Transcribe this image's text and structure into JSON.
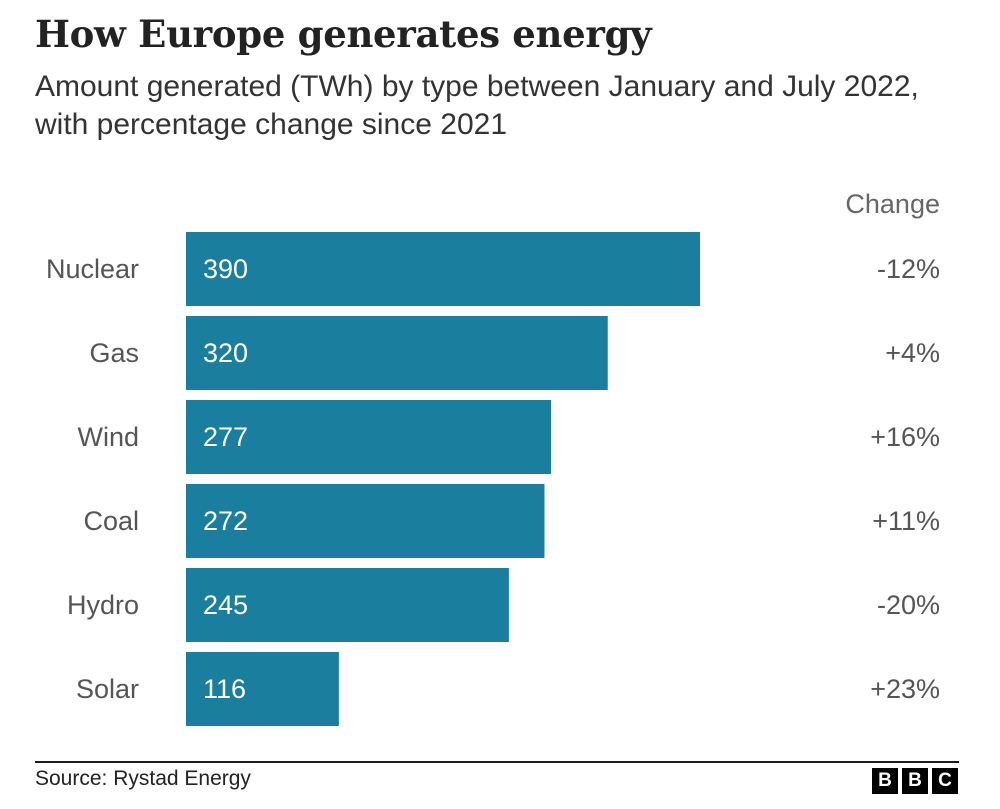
{
  "header": {
    "title": "How Europe generates energy",
    "subtitle": "Amount generated (TWh) by type between January and July 2022, with percentage change since 2021"
  },
  "chart_data": {
    "type": "bar",
    "orientation": "horizontal",
    "title": "How Europe generates energy",
    "subtitle": "Amount generated (TWh) by type between January and July 2022, with percentage change since 2021",
    "categories": [
      "Nuclear",
      "Gas",
      "Wind",
      "Coal",
      "Hydro",
      "Solar"
    ],
    "values": [
      390,
      320,
      277,
      272,
      245,
      116
    ],
    "value_labels": [
      "390",
      "320",
      "277",
      "272",
      "245",
      "116"
    ],
    "change_header": "Change",
    "changes": [
      "-12%",
      "+4%",
      "+16%",
      "+11%",
      "-20%",
      "+23%"
    ],
    "xlim": [
      0,
      390
    ],
    "unit": "TWh",
    "bar_color": "#1a7f9e",
    "grid": false
  },
  "footer": {
    "source": "Source: Rystad Energy",
    "logo_letters": [
      "B",
      "B",
      "C"
    ]
  }
}
